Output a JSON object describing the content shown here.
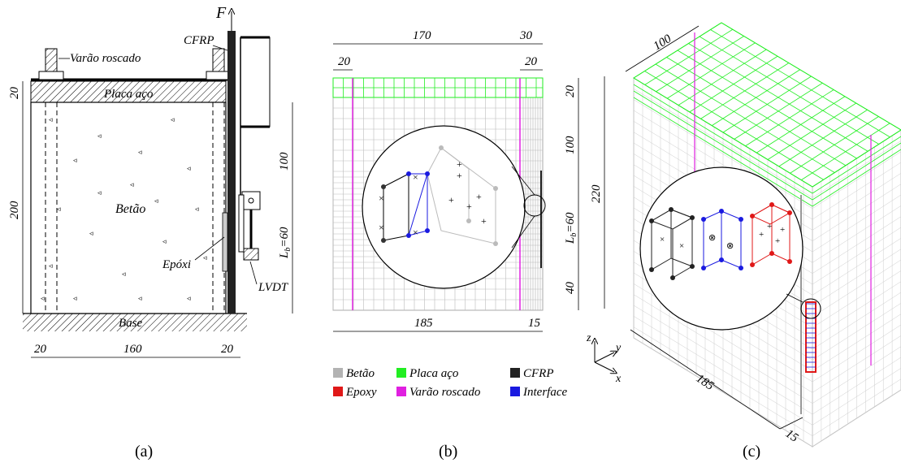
{
  "panel_a": {
    "force": "F",
    "cfrp": "CFRP",
    "rod": "Varão roscado",
    "plate": "Placa aço",
    "concrete": "Betão",
    "epoxy": "Epóxi",
    "lvdt": "LVDT",
    "base": "Base",
    "dim_20_top": "20",
    "dim_200": "200",
    "dim_100": "100",
    "dim_lb": "L",
    "dim_lb_sub": "b",
    "dim_lb_val": "=60",
    "dim_bottom_left": "20",
    "dim_bottom_mid": "160",
    "dim_bottom_right": "20",
    "caption": "(a)"
  },
  "panel_b": {
    "dim_top_170": "170",
    "dim_top_30": "30",
    "dim_top_20_left": "20",
    "dim_top_20_right": "20",
    "dim_right_20": "20",
    "dim_right_100": "100",
    "dim_right_lb": "L",
    "dim_right_lb_sub": "b",
    "dim_right_lb_val": "=60",
    "dim_right_40": "40",
    "dim_bottom_185": "185",
    "dim_bottom_15": "15",
    "caption": "(b)"
  },
  "panel_c": {
    "dim_100": "100",
    "dim_220": "220",
    "dim_185": "185",
    "dim_15": "15",
    "axis_z": "z",
    "axis_y": "y",
    "axis_x": "x",
    "caption": "(c)"
  },
  "legend": [
    {
      "label": "Betão",
      "color": "#b3b3b3"
    },
    {
      "label": "Placa aço",
      "color": "#22ee22"
    },
    {
      "label": "CFRP",
      "color": "#222222"
    },
    {
      "label": "Epoxy",
      "color": "#e01818"
    },
    {
      "label": "Varão roscado",
      "color": "#e020e0"
    },
    {
      "label": "Interface",
      "color": "#1a1ae0"
    }
  ]
}
